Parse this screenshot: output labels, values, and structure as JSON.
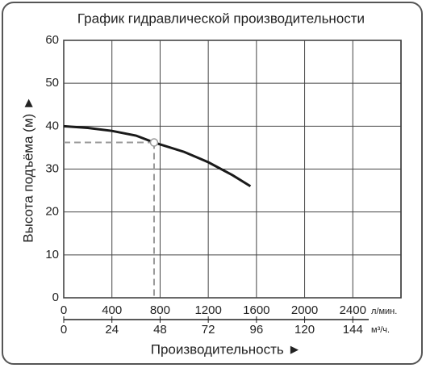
{
  "chart_data": {
    "type": "line",
    "title": "График гидравлической производительности",
    "y_label": "Высота подъёма (м) ►",
    "x_label": "Производительность ►",
    "x_unit": "л/мин.",
    "x2_unit": "м³/ч.",
    "xlim": [
      0,
      2800
    ],
    "xticks": [
      0,
      400,
      800,
      1200,
      1600,
      2000,
      2400
    ],
    "x2lim": [
      0,
      168
    ],
    "x2ticks": [
      0,
      24,
      48,
      72,
      96,
      120,
      144
    ],
    "ylim": [
      0,
      60
    ],
    "yticks": [
      0,
      10,
      20,
      30,
      40,
      50,
      60
    ],
    "grid": true,
    "series": [
      {
        "color": "#1a1a1a",
        "x": [
          0,
          200,
          400,
          600,
          750,
          1000,
          1200,
          1400,
          1550
        ],
        "values": [
          40,
          39.6,
          38.9,
          37.8,
          36.2,
          34,
          31.6,
          28.6,
          26
        ]
      }
    ],
    "operating_point": {
      "x": 750,
      "y": 36.2,
      "color": "#999999"
    }
  }
}
